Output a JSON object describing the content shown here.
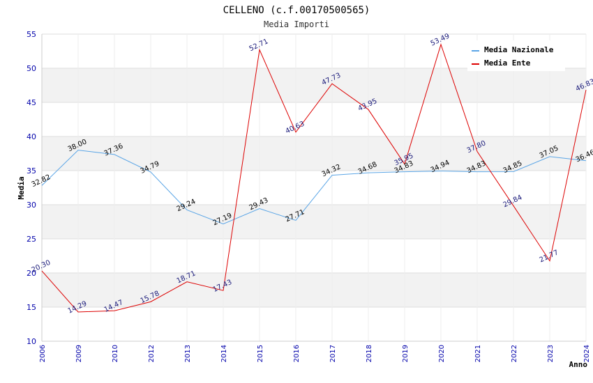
{
  "chart_data": {
    "type": "line",
    "title": "CELLENO (c.f.00170500565)",
    "subtitle": "Media Importi",
    "xlabel": "Anno",
    "ylabel": "Media",
    "ylim": [
      10,
      55
    ],
    "yticks": [
      "10",
      "15",
      "20",
      "25",
      "30",
      "35",
      "40",
      "45",
      "50",
      "55"
    ],
    "categories": [
      "2006",
      "2009",
      "2010",
      "2012",
      "2013",
      "2014",
      "2015",
      "2016",
      "2017",
      "2018",
      "2019",
      "2020",
      "2021",
      "2022",
      "2023",
      "2024"
    ],
    "grid": true,
    "legend_position": "top-right",
    "series": [
      {
        "name": "Media Nazionale",
        "color": "#5aa5e6",
        "values": [
          32.82,
          38.0,
          37.36,
          34.79,
          29.24,
          27.19,
          29.43,
          27.71,
          34.32,
          34.68,
          34.83,
          34.94,
          34.83,
          34.85,
          37.05,
          36.46
        ],
        "labels": [
          "32.82",
          "38.00",
          "37.36",
          "34.79",
          "29.24",
          "27.19",
          "29.43",
          "27.71",
          "34.32",
          "34.68",
          "34.83",
          "34.94",
          "34.83",
          "34.85",
          "37.05",
          "36.46"
        ]
      },
      {
        "name": "Media Ente",
        "color": "#dd0000",
        "values": [
          20.3,
          14.29,
          14.47,
          15.78,
          18.71,
          17.43,
          52.71,
          40.63,
          47.73,
          43.95,
          35.95,
          53.49,
          37.8,
          29.84,
          21.77,
          46.83
        ],
        "labels": [
          "20.30",
          "14.29",
          "14.47",
          "15.78",
          "18.71",
          "17.43",
          "52.71",
          "40.63",
          "47.73",
          "43.95",
          "35.95",
          "53.49",
          "37.80",
          "29.84",
          "21.77",
          "46.83"
        ]
      }
    ]
  }
}
